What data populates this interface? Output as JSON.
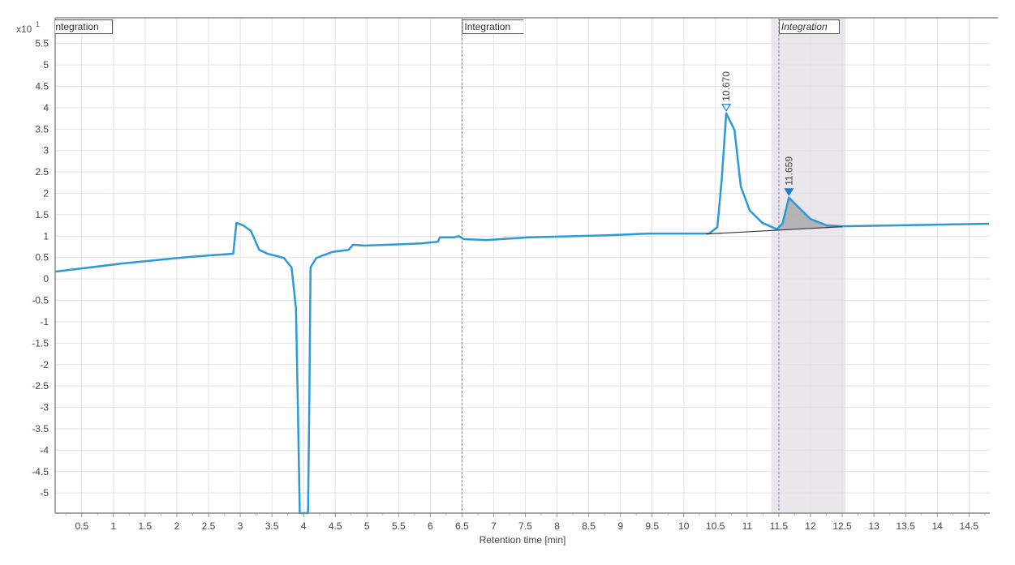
{
  "chart_data": {
    "type": "line",
    "title": "",
    "xlabel": "Retention time [min]",
    "ylabel": "",
    "y_multiplier": "x10",
    "y_exponent": "1",
    "xlim": [
      0.08,
      14.83
    ],
    "ylim": [
      -5.47,
      6.1
    ],
    "grid": true,
    "x_ticks": [
      "0.5",
      "1",
      "1.5",
      "2",
      "2.5",
      "3",
      "3.5",
      "4",
      "4.5",
      "5",
      "5.5",
      "6",
      "6.5",
      "7",
      "7.5",
      "8",
      "8.5",
      "9",
      "9.5",
      "10",
      "10.5",
      "11",
      "11.5",
      "12",
      "12.5",
      "13",
      "13.5",
      "14",
      "14.5"
    ],
    "y_ticks": [
      "5.5",
      "5",
      "4.5",
      "4",
      "3.5",
      "3",
      "2.5",
      "2",
      "1.5",
      "1",
      "0.5",
      "0",
      "-0.5",
      "-1",
      "-1.5",
      "-2",
      "-2.5",
      "-3",
      "-3.5",
      "-4",
      "-4.5",
      "-5"
    ],
    "colors": {
      "trace": "#2a9ad8",
      "baseline": "#333333",
      "peak_fill": "#a9a9ad",
      "integration_band": "#e9e6ec",
      "marker_line": "#8d8dbb"
    },
    "trace": {
      "x": [
        0.08,
        1.13,
        2.15,
        2.89,
        2.94,
        3.05,
        3.17,
        3.3,
        3.43,
        3.69,
        3.81,
        3.88,
        3.91,
        3.94,
        4.07,
        4.09,
        4.11,
        4.2,
        4.45,
        4.71,
        4.78,
        4.96,
        5.86,
        6.12,
        6.15,
        6.37,
        6.45,
        6.53,
        6.89,
        7.53,
        8.8,
        9.44,
        10.4,
        10.53,
        10.6,
        10.67,
        10.8,
        10.9,
        11.04,
        11.24,
        11.47,
        11.56,
        11.659,
        11.8,
        12.0,
        12.26,
        12.5,
        13.28,
        14.82
      ],
      "y": [
        0.17,
        0.36,
        0.51,
        0.59,
        1.31,
        1.25,
        1.12,
        0.68,
        0.59,
        0.49,
        0.27,
        -0.68,
        -3.0,
        -5.47,
        -5.47,
        -3.0,
        0.27,
        0.49,
        0.63,
        0.68,
        0.8,
        0.78,
        0.83,
        0.87,
        0.97,
        0.97,
        1.0,
        0.93,
        0.91,
        0.97,
        1.02,
        1.06,
        1.06,
        1.21,
        2.35,
        3.87,
        3.48,
        2.16,
        1.6,
        1.31,
        1.16,
        1.3,
        1.9,
        1.69,
        1.4,
        1.25,
        1.23,
        1.25,
        1.29
      ]
    },
    "baseline": {
      "x": [
        10.35,
        12.5
      ],
      "y": [
        1.05,
        1.22
      ]
    },
    "peaks": [
      {
        "rt": "10.670",
        "x": 10.67,
        "y": 3.87,
        "marker": "open-triangle"
      },
      {
        "rt": "11.659",
        "x": 11.659,
        "y": 1.9,
        "marker": "filled-triangle",
        "integrated_range": [
          11.45,
          12.5
        ]
      }
    ],
    "integration_events": [
      {
        "label": "Integration",
        "x": 0.0,
        "italic": false
      },
      {
        "label": "Integration",
        "x": 6.5,
        "italic": false
      },
      {
        "label": "Integration",
        "x": 11.5,
        "italic": true,
        "band": [
          11.38,
          12.55
        ]
      }
    ]
  }
}
